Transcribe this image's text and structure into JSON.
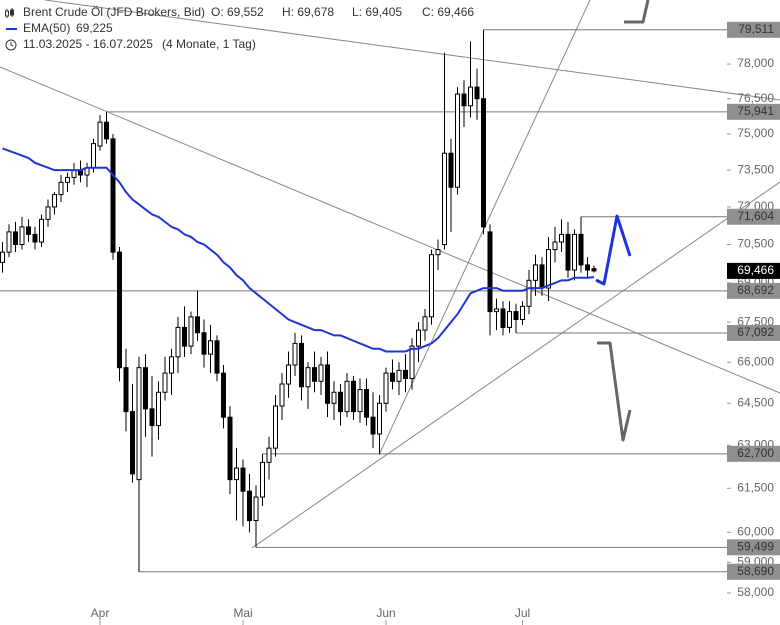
{
  "chart_data": {
    "type": "candlestick",
    "title": "Brent Crude Öl (JFD Brokers, Bid)",
    "ohlc_labels": [
      "O: 69,552",
      "H: 69,678",
      "L: 69,405",
      "C: 69,466"
    ],
    "period": "11.03.2025 - 16.07.2025",
    "period_note": "(4 Monate, 1 Tag)",
    "log_scale": true,
    "ylim": [
      57.77,
      80.85
    ],
    "yticks": [
      {
        "value": 58,
        "label": "58,000"
      },
      {
        "value": 59,
        "label": "59,000"
      },
      {
        "value": 60,
        "label": "60,000"
      },
      {
        "value": 61.5,
        "label": "61,500"
      },
      {
        "value": 63,
        "label": "63,000"
      },
      {
        "value": 64.5,
        "label": "64,500"
      },
      {
        "value": 66,
        "label": "66,000"
      },
      {
        "value": 67.5,
        "label": "67,500"
      },
      {
        "value": 69,
        "label": "69,000"
      },
      {
        "value": 70.5,
        "label": "70,500"
      },
      {
        "value": 72,
        "label": "72,000"
      },
      {
        "value": 73.5,
        "label": "73,500"
      },
      {
        "value": 75,
        "label": "75,000"
      },
      {
        "value": 76.5,
        "label": "76,500"
      },
      {
        "value": 78,
        "label": "78,000"
      },
      {
        "value": 79.5,
        "label": "79,500"
      }
    ],
    "categories": [
      null,
      null,
      null,
      null,
      null,
      null,
      null,
      null,
      null,
      null,
      null,
      null,
      null,
      null,
      null,
      "Apr",
      null,
      null,
      null,
      null,
      null,
      null,
      null,
      null,
      null,
      null,
      null,
      null,
      null,
      null,
      null,
      null,
      null,
      null,
      null,
      null,
      null,
      "Mai",
      null,
      null,
      null,
      null,
      null,
      null,
      null,
      null,
      null,
      null,
      null,
      null,
      null,
      null,
      null,
      null,
      null,
      null,
      null,
      null,
      null,
      "Jun",
      null,
      null,
      null,
      null,
      null,
      null,
      null,
      null,
      null,
      null,
      null,
      null,
      null,
      null,
      null,
      null,
      null,
      null,
      null,
      null,
      "Jul",
      null,
      null,
      null,
      null,
      null,
      null,
      null,
      null,
      null,
      null,
      null
    ],
    "candles": [
      [
        69.8,
        70.6,
        69.4,
        70.2
      ],
      [
        70.2,
        71.3,
        70.0,
        71.0
      ],
      [
        71.0,
        71.4,
        70.2,
        70.5
      ],
      [
        70.5,
        71.6,
        70.3,
        71.2
      ],
      [
        71.2,
        71.5,
        70.6,
        70.9
      ],
      [
        70.9,
        71.2,
        70.3,
        70.6
      ],
      [
        70.6,
        71.7,
        70.4,
        71.5
      ],
      [
        71.5,
        72.3,
        71.2,
        72.0
      ],
      [
        72.0,
        72.6,
        71.7,
        72.5
      ],
      [
        72.5,
        73.3,
        72.2,
        73.0
      ],
      [
        73.0,
        73.4,
        72.6,
        73.2
      ],
      [
        73.2,
        73.8,
        72.9,
        73.5
      ],
      [
        73.5,
        73.9,
        73.0,
        73.3
      ],
      [
        73.3,
        73.8,
        72.8,
        73.6
      ],
      [
        73.6,
        74.8,
        73.4,
        74.6
      ],
      [
        74.5,
        75.8,
        74.3,
        75.5
      ],
      [
        75.5,
        75.941,
        74.6,
        74.8
      ],
      [
        74.8,
        75.0,
        69.9,
        70.2
      ],
      [
        70.2,
        70.4,
        65.3,
        65.8
      ],
      [
        65.8,
        66.5,
        63.5,
        64.2
      ],
      [
        64.2,
        65.2,
        61.7,
        62.0
      ],
      [
        61.8,
        66.2,
        58.69,
        65.8
      ],
      [
        65.8,
        66.3,
        63.3,
        64.3
      ],
      [
        64.3,
        65.5,
        62.6,
        63.7
      ],
      [
        63.7,
        65.3,
        63.2,
        64.9
      ],
      [
        64.9,
        66.2,
        64.6,
        65.6
      ],
      [
        65.6,
        66.5,
        64.8,
        66.2
      ],
      [
        66.2,
        67.7,
        65.6,
        67.3
      ],
      [
        67.3,
        68.1,
        66.2,
        66.6
      ],
      [
        66.6,
        67.9,
        66.3,
        67.7
      ],
      [
        67.7,
        68.7,
        66.8,
        67.1
      ],
      [
        67.1,
        67.6,
        65.8,
        66.3
      ],
      [
        66.3,
        67.4,
        65.6,
        66.8
      ],
      [
        66.8,
        67.0,
        65.3,
        65.6
      ],
      [
        65.6,
        65.9,
        63.6,
        64.0
      ],
      [
        64.0,
        64.4,
        61.3,
        61.8
      ],
      [
        61.8,
        62.9,
        60.4,
        62.2
      ],
      [
        62.2,
        62.5,
        60.2,
        61.4
      ],
      [
        61.4,
        62.0,
        60.0,
        60.4
      ],
      [
        60.4,
        61.6,
        59.499,
        61.2
      ],
      [
        61.2,
        62.7,
        60.9,
        62.4
      ],
      [
        62.4,
        63.3,
        61.8,
        62.9
      ],
      [
        62.9,
        64.8,
        62.6,
        64.4
      ],
      [
        64.4,
        65.6,
        63.9,
        65.2
      ],
      [
        65.2,
        66.4,
        64.7,
        65.9
      ],
      [
        65.9,
        67.1,
        65.5,
        66.7
      ],
      [
        66.7,
        67.0,
        64.6,
        65.1
      ],
      [
        65.1,
        66.0,
        64.3,
        65.8
      ],
      [
        65.8,
        66.4,
        64.9,
        65.3
      ],
      [
        65.3,
        66.2,
        64.8,
        65.9
      ],
      [
        65.9,
        66.4,
        64.0,
        64.5
      ],
      [
        64.5,
        65.3,
        63.9,
        64.9
      ],
      [
        64.9,
        65.2,
        63.7,
        64.2
      ],
      [
        64.2,
        65.6,
        64.0,
        65.3
      ],
      [
        65.3,
        65.5,
        63.9,
        64.2
      ],
      [
        64.2,
        65.4,
        63.8,
        65.0
      ],
      [
        65.0,
        65.4,
        63.7,
        64.0
      ],
      [
        64.0,
        64.9,
        62.9,
        63.4
      ],
      [
        63.4,
        64.8,
        62.7,
        64.5
      ],
      [
        64.5,
        65.8,
        64.2,
        65.6
      ],
      [
        65.6,
        66.1,
        65.0,
        65.3
      ],
      [
        65.3,
        66.0,
        64.8,
        65.7
      ],
      [
        65.7,
        66.3,
        64.9,
        65.4
      ],
      [
        65.4,
        66.9,
        65.0,
        66.6
      ],
      [
        66.6,
        67.5,
        66.0,
        67.2
      ],
      [
        67.2,
        68.0,
        66.8,
        67.7
      ],
      [
        67.7,
        70.3,
        67.4,
        70.1
      ],
      [
        70.1,
        70.7,
        69.5,
        70.3
      ],
      [
        70.5,
        78.5,
        70.3,
        74.2
      ],
      [
        74.2,
        74.8,
        71.0,
        72.8
      ],
      [
        72.8,
        77.0,
        72.5,
        76.7
      ],
      [
        76.7,
        77.3,
        75.3,
        76.2
      ],
      [
        76.2,
        79.0,
        75.7,
        77.0
      ],
      [
        77.0,
        77.8,
        75.6,
        76.5
      ],
      [
        76.5,
        79.511,
        70.9,
        71.2
      ],
      [
        71.0,
        71.3,
        67.0,
        67.9
      ],
      [
        67.9,
        68.4,
        67.2,
        68.0
      ],
      [
        68.0,
        68.3,
        67.0,
        67.3
      ],
      [
        67.3,
        68.3,
        67.1,
        67.9
      ],
      [
        67.9,
        68.2,
        67.092,
        67.6
      ],
      [
        67.6,
        68.3,
        67.4,
        68.1
      ],
      [
        68.1,
        69.5,
        67.8,
        69.1
      ],
      [
        69.1,
        70.1,
        68.5,
        69.7
      ],
      [
        69.7,
        70.0,
        68.5,
        68.8
      ],
      [
        68.8,
        70.8,
        68.3,
        70.3
      ],
      [
        70.3,
        71.2,
        69.8,
        70.6
      ],
      [
        70.6,
        71.5,
        70.2,
        70.9
      ],
      [
        70.9,
        71.4,
        69.2,
        69.5
      ],
      [
        69.5,
        71.1,
        69.1,
        70.9
      ],
      [
        70.9,
        71.604,
        69.4,
        69.7
      ],
      [
        69.7,
        70.0,
        69.2,
        69.5
      ],
      [
        69.552,
        69.678,
        69.405,
        69.466
      ]
    ],
    "ema": {
      "name": "EMA(50)",
      "value_label": "69,225",
      "color": "#1f34d8",
      "values": [
        74.4,
        74.3,
        74.2,
        74.1,
        74.0,
        73.8,
        73.7,
        73.6,
        73.5,
        73.5,
        73.5,
        73.5,
        73.5,
        73.6,
        73.6,
        73.6,
        73.6,
        73.3,
        73.0,
        72.6,
        72.3,
        72.1,
        71.9,
        71.7,
        71.6,
        71.4,
        71.2,
        71.1,
        70.9,
        70.8,
        70.6,
        70.5,
        70.3,
        70.1,
        69.8,
        69.6,
        69.3,
        69.1,
        68.8,
        68.6,
        68.4,
        68.2,
        68.0,
        67.8,
        67.6,
        67.5,
        67.4,
        67.3,
        67.2,
        67.2,
        67.1,
        67.0,
        67.0,
        66.9,
        66.8,
        66.7,
        66.6,
        66.5,
        66.5,
        66.4,
        66.4,
        66.4,
        66.4,
        66.5,
        66.5,
        66.6,
        66.7,
        66.9,
        67.2,
        67.5,
        67.8,
        68.2,
        68.6,
        68.7,
        68.8,
        68.8,
        68.8,
        68.7,
        68.7,
        68.7,
        68.7,
        68.8,
        68.8,
        68.8,
        68.9,
        69.0,
        69.1,
        69.1,
        69.2,
        69.2,
        69.2,
        69.225
      ]
    },
    "levels": [
      {
        "value": 79.511,
        "label": "79,511"
      },
      {
        "value": 75.941,
        "label": "75,941"
      },
      {
        "value": 71.604,
        "label": "71,604"
      },
      {
        "value": 68.692,
        "label": "68,692"
      },
      {
        "value": 67.092,
        "label": "67,092"
      },
      {
        "value": 62.7,
        "label": "62,700"
      },
      {
        "value": 59.499,
        "label": "59,499"
      },
      {
        "value": 58.69,
        "label": "58,690"
      }
    ],
    "last_price": {
      "value": 69.466,
      "label": "69,466"
    }
  }
}
